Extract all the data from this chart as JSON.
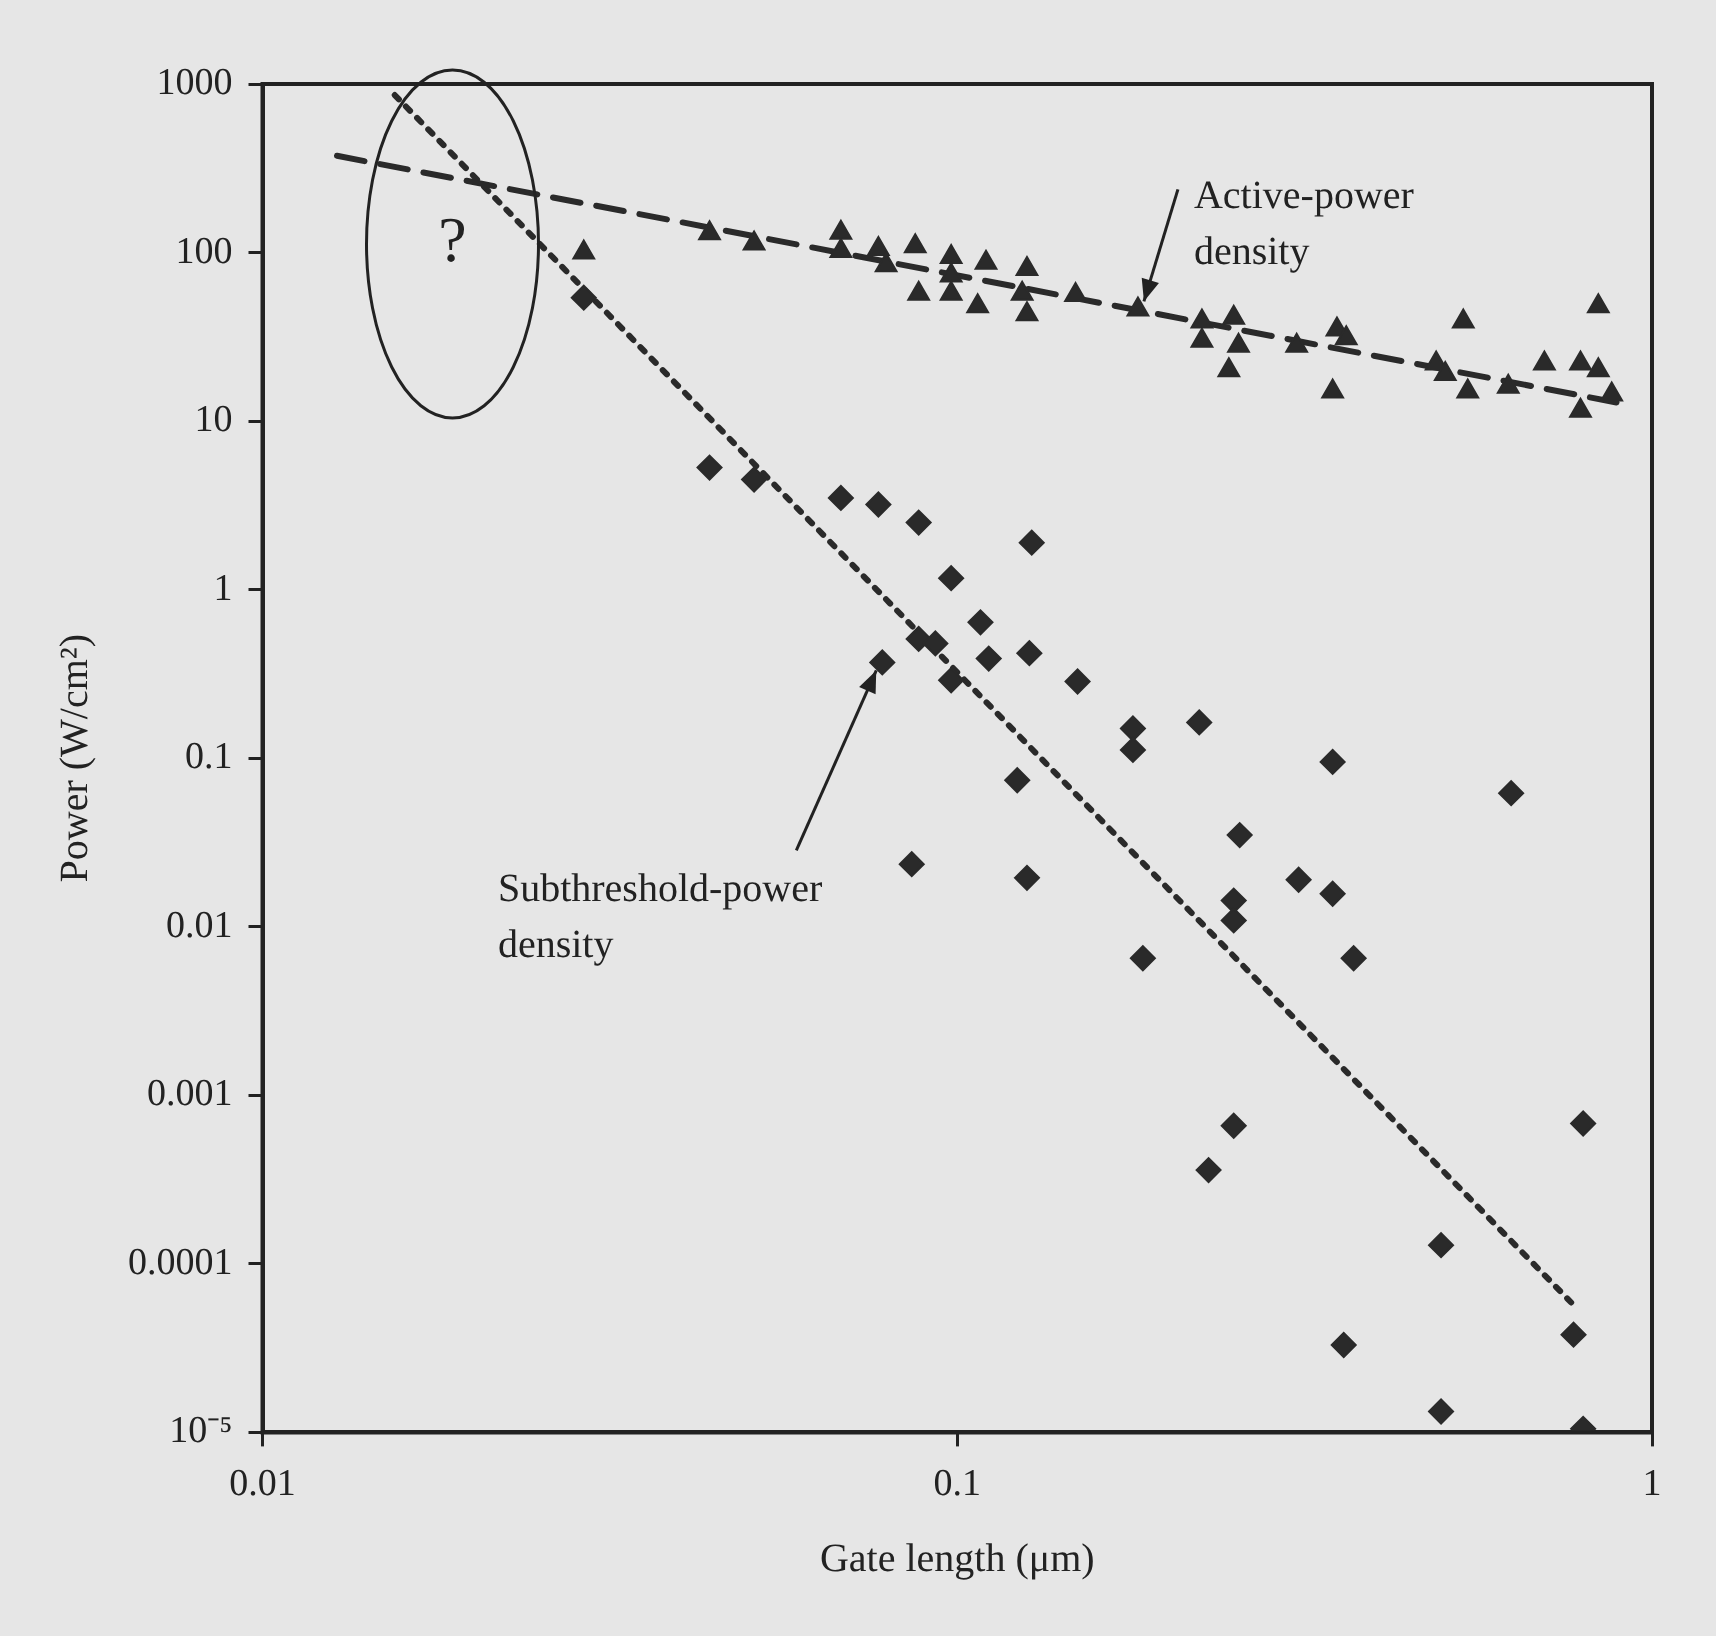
{
  "chart_data": {
    "type": "scatter",
    "xlabel": "Gate length (μm)",
    "ylabel": "Power (W/cm²)",
    "log": "xy",
    "grid": false,
    "legend": false,
    "xlim": [
      0.01,
      1
    ],
    "xticks": [
      0.01,
      0.1,
      1
    ],
    "ylim": [
      1e-05,
      1000
    ],
    "yticks": [
      1000,
      100,
      10,
      1,
      0.1,
      0.01,
      0.001,
      0.0001,
      {
        "value": 1e-05,
        "label": "10⁻⁵"
      }
    ],
    "series": [
      {
        "marker": "triangle",
        "color": "#2a2a2a",
        "x": [
          0.029,
          0.044,
          0.051,
          0.068,
          0.068,
          0.077,
          0.079,
          0.087,
          0.098,
          0.098,
          0.088,
          0.098,
          0.11,
          0.107,
          0.126,
          0.124,
          0.126,
          0.148,
          0.182,
          0.225,
          0.225,
          0.25,
          0.254,
          0.246,
          0.308,
          0.352,
          0.363,
          0.347,
          0.535,
          0.489,
          0.504,
          0.543,
          0.621,
          0.837,
          0.7,
          0.789,
          0.837,
          0.789,
          0.875
        ],
        "values": [
          100,
          130,
          113,
          131,
          102,
          105,
          84,
          109,
          94,
          73,
          57,
          57,
          87,
          48,
          80,
          57,
          43,
          56,
          46,
          39,
          30,
          41,
          28,
          20,
          28,
          35,
          31,
          15,
          39,
          22,
          19,
          15,
          16,
          48,
          22,
          22,
          20,
          11.5,
          14.4
        ]
      },
      {
        "marker": "diamond",
        "color": "#2a2a2a",
        "x": [
          0.029,
          0.044,
          0.051,
          0.068,
          0.077,
          0.088,
          0.128,
          0.098,
          0.108,
          0.088,
          0.093,
          0.078,
          0.111,
          0.127,
          0.098,
          0.149,
          0.179,
          0.179,
          0.223,
          0.347,
          0.627,
          0.122,
          0.086,
          0.126,
          0.255,
          0.31,
          0.347,
          0.25,
          0.25,
          0.185,
          0.372,
          0.25,
          0.23,
          0.497,
          0.796,
          0.36,
          0.771,
          0.497,
          0.796
        ],
        "values": [
          54,
          5.3,
          4.5,
          3.5,
          3.2,
          2.5,
          1.9,
          1.17,
          0.64,
          0.51,
          0.48,
          0.37,
          0.39,
          0.42,
          0.29,
          0.285,
          0.15,
          0.112,
          0.163,
          0.095,
          0.062,
          0.074,
          0.0235,
          0.0195,
          0.035,
          0.019,
          0.0157,
          0.0143,
          0.0109,
          0.0065,
          0.0065,
          0.00066,
          0.00036,
          0.000129,
          0.00068,
          3.3e-05,
          3.8e-05,
          1.33e-05,
          1.05e-05
        ]
      },
      {
        "type": "line",
        "line_style": "dashed",
        "color": "#2a2a2a",
        "x": [
          0.0128,
          0.889
        ],
        "values": [
          375,
          12.9
        ]
      },
      {
        "type": "line",
        "line_style": "dotted",
        "color": "#2a2a2a",
        "x": [
          0.0155,
          0.765
        ],
        "values": [
          860,
          5.9e-05
        ]
      }
    ],
    "annotations": [
      "?",
      {
        "text": "Active-power density",
        "x": 0.182,
        "y": 46
      },
      {
        "text": "Subthreshold-power density",
        "x": 0.078,
        "y": 0.37
      }
    ]
  }
}
